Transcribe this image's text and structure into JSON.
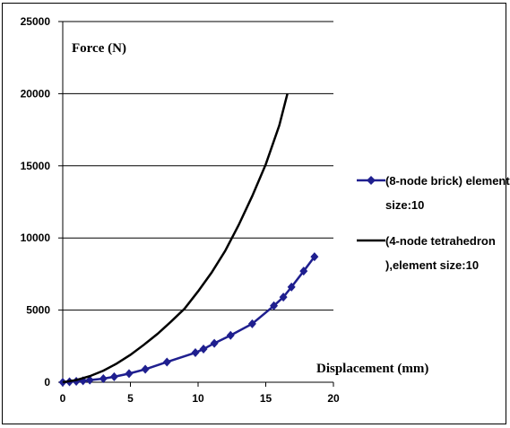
{
  "chart_data": {
    "type": "line",
    "xlabel": "Displacement (mm)",
    "ylabel": "Force (N)",
    "xlim": [
      0,
      20
    ],
    "ylim": [
      0,
      25000
    ],
    "x_ticks": [
      0,
      5,
      10,
      15,
      20
    ],
    "y_ticks": [
      0,
      5000,
      10000,
      15000,
      20000,
      25000
    ],
    "grid": "horizontal",
    "legend_position": "right",
    "series": [
      {
        "name": "(8-node brick) element size:10",
        "color": "#1f1f8f",
        "marker": "diamond",
        "x": [
          0,
          0.5,
          1,
          1.5,
          2,
          3,
          3.8,
          4.9,
          6.1,
          7.7,
          9.8,
          10.4,
          11.2,
          12.4,
          14.0,
          15.6,
          16.3,
          16.9,
          17.8,
          18.6
        ],
        "y": [
          0,
          30,
          60,
          100,
          150,
          250,
          380,
          600,
          900,
          1400,
          2050,
          2300,
          2700,
          3250,
          4050,
          5300,
          5900,
          6600,
          7700,
          8700
        ]
      },
      {
        "name": "(4-node tetrahedron ),element size:10",
        "color": "#000000",
        "marker": "none",
        "x": [
          0,
          1,
          2,
          3,
          4,
          5,
          6,
          7,
          8,
          9,
          10,
          11,
          12,
          13,
          14,
          15,
          16,
          16.6
        ],
        "y": [
          0,
          150,
          420,
          800,
          1300,
          1900,
          2600,
          3350,
          4200,
          5100,
          6300,
          7600,
          9100,
          10900,
          12900,
          15100,
          17800,
          20000
        ]
      }
    ],
    "legend": [
      {
        "lines": [
          "(8-node brick) element",
          "size:10"
        ]
      },
      {
        "lines": [
          "(4-node tetrahedron",
          "),element size:10"
        ]
      }
    ]
  }
}
